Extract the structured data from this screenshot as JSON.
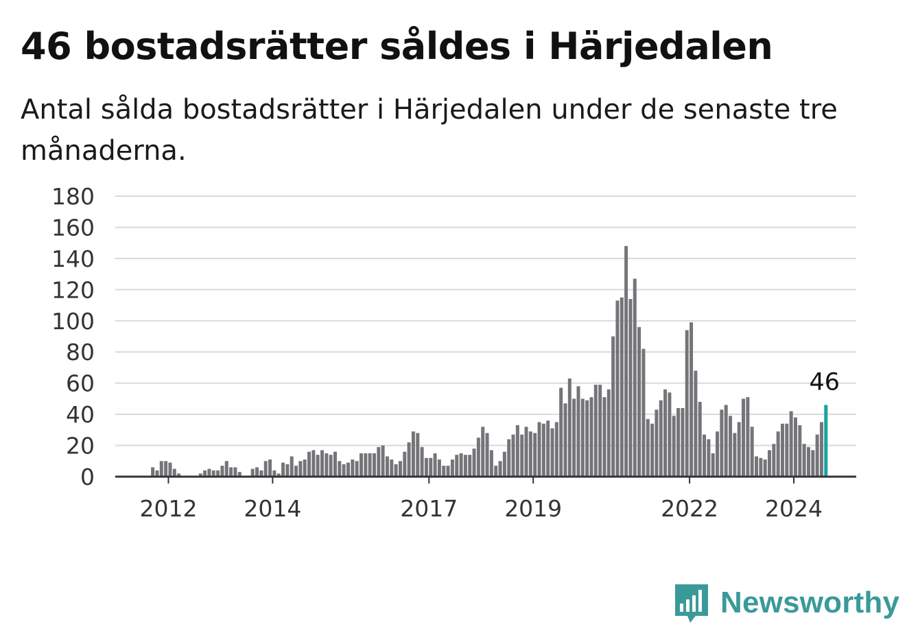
{
  "title": "46 bostadsrätter såldes i Härjedalen",
  "subtitle": "Antal sålda bostadsrätter i Härjedalen under de senaste tre månaderna.",
  "brand": {
    "name": "Newsworthy",
    "icon": "newsworthy-logo-icon",
    "color": "#3a9a99"
  },
  "colors": {
    "bar": "#757478",
    "highlight": "#17a2a0",
    "grid": "#d9d9d9",
    "axis": "#333333"
  },
  "chart_data": {
    "type": "bar",
    "title": "46 bostadsrätter såldes i Härjedalen",
    "subtitle": "Antal sålda bostadsrätter i Härjedalen under de senaste tre månaderna.",
    "xlabel": "",
    "ylabel": "",
    "ylim": [
      0,
      180
    ],
    "yticks": [
      0,
      20,
      40,
      60,
      80,
      100,
      120,
      140,
      160,
      180
    ],
    "xticks": [
      "2012",
      "2014",
      "2017",
      "2019",
      "2022",
      "2024"
    ],
    "grid": true,
    "start_month": "2011-01",
    "highlight_label": "46",
    "values": [
      0,
      0,
      0,
      0,
      0,
      0,
      0,
      0,
      6,
      4,
      10,
      10,
      9,
      5,
      2,
      0,
      0,
      0,
      0,
      2,
      4,
      5,
      4,
      4,
      7,
      10,
      6,
      6,
      3,
      0,
      0,
      5,
      6,
      4,
      10,
      11,
      4,
      2,
      9,
      8,
      13,
      7,
      10,
      11,
      16,
      17,
      14,
      17,
      15,
      14,
      16,
      10,
      8,
      9,
      11,
      10,
      15,
      15,
      15,
      15,
      19,
      20,
      13,
      11,
      8,
      10,
      16,
      22,
      29,
      28,
      19,
      12,
      12,
      15,
      11,
      7,
      7,
      11,
      14,
      15,
      14,
      14,
      18,
      25,
      32,
      28,
      17,
      7,
      10,
      16,
      24,
      27,
      33,
      27,
      32,
      29,
      28,
      35,
      34,
      36,
      31,
      35,
      57,
      47,
      63,
      50,
      58,
      50,
      49,
      51,
      59,
      59,
      51,
      56,
      90,
      113,
      115,
      148,
      114,
      127,
      96,
      82,
      37,
      34,
      43,
      49,
      56,
      54,
      39,
      44,
      44,
      94,
      99,
      68,
      48,
      27,
      24,
      15,
      29,
      43,
      46,
      39,
      28,
      35,
      50,
      51,
      32,
      13,
      12,
      11,
      17,
      21,
      29,
      34,
      34,
      42,
      38,
      33,
      21,
      19,
      17,
      27,
      35,
      46
    ]
  }
}
